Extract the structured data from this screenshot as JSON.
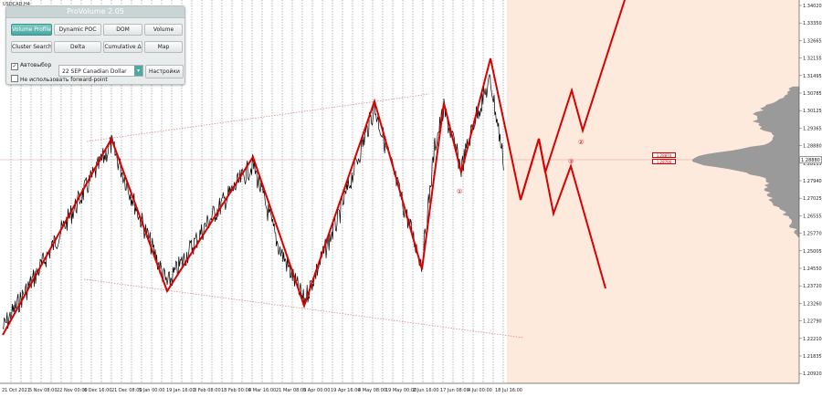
{
  "symbol": "USDCAD,H4",
  "panel": {
    "title": "ProVolume 2.05",
    "buttons": [
      {
        "label": "Volume Profile",
        "active": true
      },
      {
        "label": "Dynamic POC",
        "active": false
      },
      {
        "label": "DOM",
        "active": false
      },
      {
        "label": "Volume",
        "active": false
      },
      {
        "label": "Cluster Search",
        "active": false
      },
      {
        "label": "Delta",
        "active": false
      },
      {
        "label": "Cumulative Δ",
        "active": false
      },
      {
        "label": "Map",
        "active": false
      }
    ],
    "autoselect_label": "Автовыбор",
    "contract_value": "22 SEP Canadian Dollar",
    "settings_label": "Настройки",
    "forward_point_label": "Не использовать forward-point"
  },
  "price_axis": [
    "1.34020",
    "1.33350",
    "1.32665",
    "1.32155",
    "1.31495",
    "1.30785",
    "1.30125",
    "1.29365",
    "1.28880",
    "1.28115",
    "1.27940",
    "1.27025",
    "1.26555",
    "1.25770",
    "1.25005",
    "1.24550",
    "1.23720",
    "1.23260",
    "1.22790",
    "1.22210",
    "1.21835",
    "1.20920"
  ],
  "current_price": "1.28880",
  "level_tags": [
    "1.28870",
    "1.28700"
  ],
  "time_axis": [
    "21 Oct 2021",
    "5 Nov 08:00",
    "22 Nov 00:00",
    "6 Dec 16:00",
    "21 Dec 08:00",
    "5 Jan 00:00",
    "19 Jan 16:00",
    "3 Feb 08:00",
    "18 Feb 00:00",
    "4 Mar 16:00",
    "21 Mar 08:00",
    "5 Apr 00:00",
    "19 Apr 16:00",
    "4 May 08:00",
    "19 May 00:00",
    "2 Jun 16:00",
    "17 Jun 08:00",
    "4 Jul 00:00",
    "18 Jul 16:00"
  ],
  "wave_labels": [
    "①",
    "②",
    "③"
  ],
  "colors": {
    "wave": "#d80000",
    "channel": "#e08a8a",
    "grid": "#7a7a7a",
    "future_bg": "#fde9dc"
  }
}
